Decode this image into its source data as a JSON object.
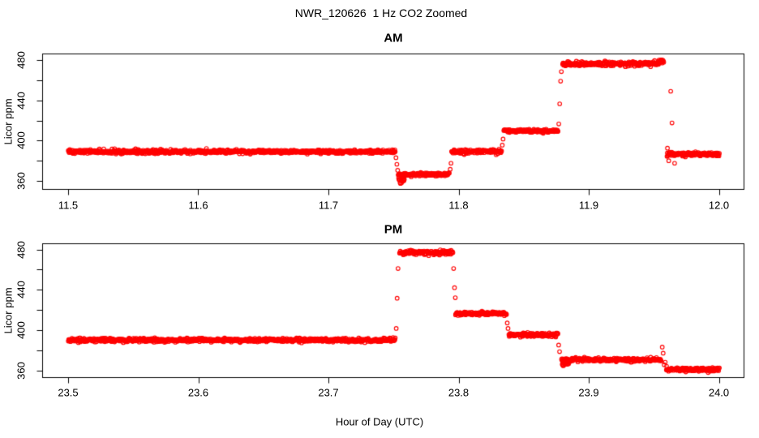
{
  "title": "NWR_120626  1 Hz CO2 Zoomed",
  "xlabel": "Hour of Day (UTC)",
  "colors": {
    "points": "#ff0000",
    "axis": "#000000",
    "background": "#ffffff"
  },
  "chart_data": {
    "type": "scatter",
    "title": "NWR_120626  1 Hz CO2 Zoomed",
    "xlabel": "Hour of Day (UTC)",
    "marker": "open-circle",
    "point_color": "#ff0000",
    "sample_rate_hz": 1,
    "legend": "none",
    "grid": false,
    "panels": [
      {
        "title": "AM",
        "ylabel": "Licor ppm",
        "xlim": [
          11.5,
          12.0
        ],
        "xticks": [
          11.5,
          11.6,
          11.7,
          11.8,
          11.9,
          12.0
        ],
        "xtick_labels": [
          "11.5",
          "11.6",
          "11.7",
          "11.8",
          "11.9",
          "12.0"
        ],
        "yticks": [
          360,
          400,
          440,
          480
        ],
        "ytick_labels": [
          "360",
          "400",
          "440",
          "480"
        ],
        "yticks_minor": [
          380,
          420,
          460
        ],
        "plateau_segments": [
          {
            "t0": 11.5,
            "t1": 11.7515,
            "ppm": 389.0,
            "sd": 0.9
          },
          {
            "t0": 11.7535,
            "t1": 11.793,
            "ppm": 366.3,
            "sd": 0.8
          },
          {
            "t0": 11.7538,
            "t1": 11.7585,
            "ppm": 360.5,
            "sd": 1.2
          },
          {
            "t0": 11.7945,
            "t1": 11.8332,
            "ppm": 389.2,
            "sd": 0.9
          },
          {
            "t0": 11.8346,
            "t1": 11.8766,
            "ppm": 409.5,
            "sd": 0.9
          },
          {
            "t0": 11.8798,
            "t1": 11.9538,
            "ppm": 476.3,
            "sd": 1.0
          },
          {
            "t0": 11.9538,
            "t1": 11.9578,
            "ppm": 478.8,
            "sd": 1.2
          },
          {
            "t0": 11.96,
            "t1": 12.0005,
            "ppm": 386.5,
            "sd": 1.0
          }
        ],
        "transition_points": [
          [
            11.7519,
            383.0
          ],
          [
            11.7526,
            376.5
          ],
          [
            11.7532,
            370.5
          ],
          [
            11.7936,
            371.5
          ],
          [
            11.7942,
            377.5
          ],
          [
            11.8336,
            395.5
          ],
          [
            11.8342,
            401.5
          ],
          [
            11.877,
            416.5
          ],
          [
            11.8777,
            436.5
          ],
          [
            11.8784,
            459.0
          ],
          [
            11.879,
            468.5
          ],
          [
            11.9605,
            392.5
          ],
          [
            11.9615,
            380.0
          ],
          [
            11.963,
            449.0
          ],
          [
            11.964,
            417.5
          ],
          [
            11.966,
            377.5
          ]
        ]
      },
      {
        "title": "PM",
        "ylabel": "Licor ppm",
        "xlim": [
          23.5,
          24.0
        ],
        "xticks": [
          23.5,
          23.6,
          23.7,
          23.8,
          23.9,
          24.0
        ],
        "xtick_labels": [
          "23.5",
          "23.6",
          "23.7",
          "23.8",
          "23.9",
          "24.0"
        ],
        "yticks": [
          360,
          400,
          440,
          480
        ],
        "ytick_labels": [
          "360",
          "400",
          "440",
          "480"
        ],
        "yticks_minor": [
          380,
          420,
          460
        ],
        "plateau_segments": [
          {
            "t0": 23.5,
            "t1": 23.7515,
            "ppm": 390.0,
            "sd": 0.9
          },
          {
            "t0": 23.7545,
            "t1": 23.7958,
            "ppm": 476.8,
            "sd": 1.0
          },
          {
            "t0": 23.7975,
            "t1": 23.837,
            "ppm": 416.3,
            "sd": 0.9
          },
          {
            "t0": 23.8385,
            "t1": 23.8765,
            "ppm": 395.3,
            "sd": 0.9
          },
          {
            "t0": 23.879,
            "t1": 23.9558,
            "ppm": 370.6,
            "sd": 0.9
          },
          {
            "t0": 23.8795,
            "t1": 23.885,
            "ppm": 366.6,
            "sd": 0.9
          },
          {
            "t0": 23.9595,
            "t1": 24.0005,
            "ppm": 360.8,
            "sd": 0.9
          }
        ],
        "transition_points": [
          [
            23.7521,
            401.5
          ],
          [
            23.7528,
            431.5
          ],
          [
            23.7535,
            461.0
          ],
          [
            23.7962,
            461.0
          ],
          [
            23.7969,
            442.0
          ],
          [
            23.7975,
            432.0
          ],
          [
            23.8374,
            407.0
          ],
          [
            23.838,
            401.5
          ],
          [
            23.8769,
            385.0
          ],
          [
            23.8776,
            378.5
          ],
          [
            23.9565,
            383.0
          ],
          [
            23.9572,
            377.0
          ],
          [
            23.958,
            365.5
          ],
          [
            23.9588,
            368.0
          ],
          [
            23.9598,
            364.0
          ]
        ]
      }
    ]
  }
}
